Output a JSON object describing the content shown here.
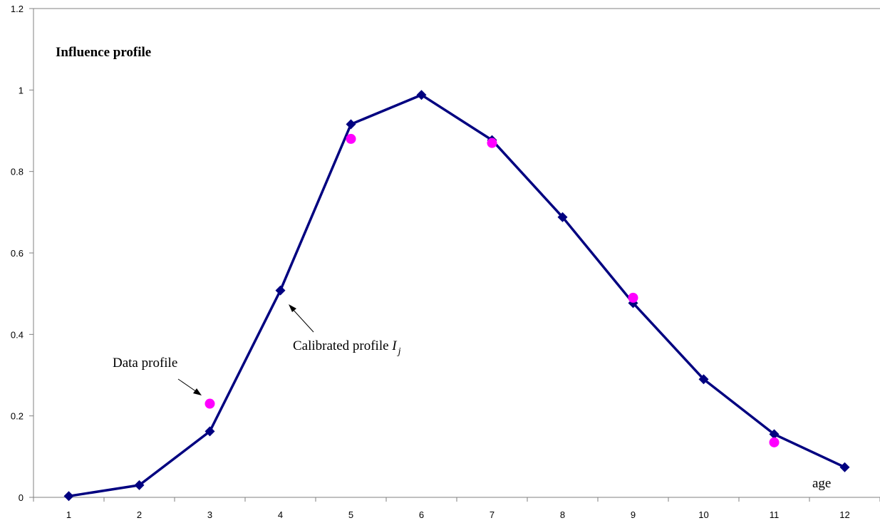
{
  "chart_data": {
    "type": "line",
    "title": "Influence profile",
    "xlabel": "age",
    "ylabel": "",
    "x": [
      1,
      2,
      3,
      4,
      5,
      6,
      7,
      8,
      9,
      10,
      11,
      12
    ],
    "xlim": [
      0.5,
      12.5
    ],
    "ylim": [
      0,
      1.2
    ],
    "yticks": [
      "0",
      "0.2",
      "0.4",
      "0.6",
      "0.8",
      "1",
      "1.2"
    ],
    "xticks": [
      "1",
      "2",
      "3",
      "4",
      "5",
      "6",
      "7",
      "8",
      "9",
      "10",
      "11",
      "12"
    ],
    "grid": false,
    "series": [
      {
        "id": "calibrated",
        "color": "#000080",
        "marker": "diamond",
        "x": [
          1,
          2,
          3,
          4,
          5,
          6,
          7,
          8,
          9,
          10,
          11,
          12
        ],
        "values": [
          0.003,
          0.03,
          0.162,
          0.508,
          0.916,
          0.988,
          0.877,
          0.688,
          0.477,
          0.29,
          0.155,
          0.074
        ]
      },
      {
        "id": "data",
        "color": "#ff00ff",
        "marker": "circle",
        "x": [
          3,
          5,
          7,
          9,
          11
        ],
        "values": [
          0.23,
          0.88,
          0.87,
          0.49,
          0.135
        ]
      }
    ],
    "annotations": {
      "data_profile": "Data profile",
      "calibrated_profile": "Calibrated profile ",
      "calibrated_symbol": "I",
      "calibrated_subscript": "j"
    }
  }
}
